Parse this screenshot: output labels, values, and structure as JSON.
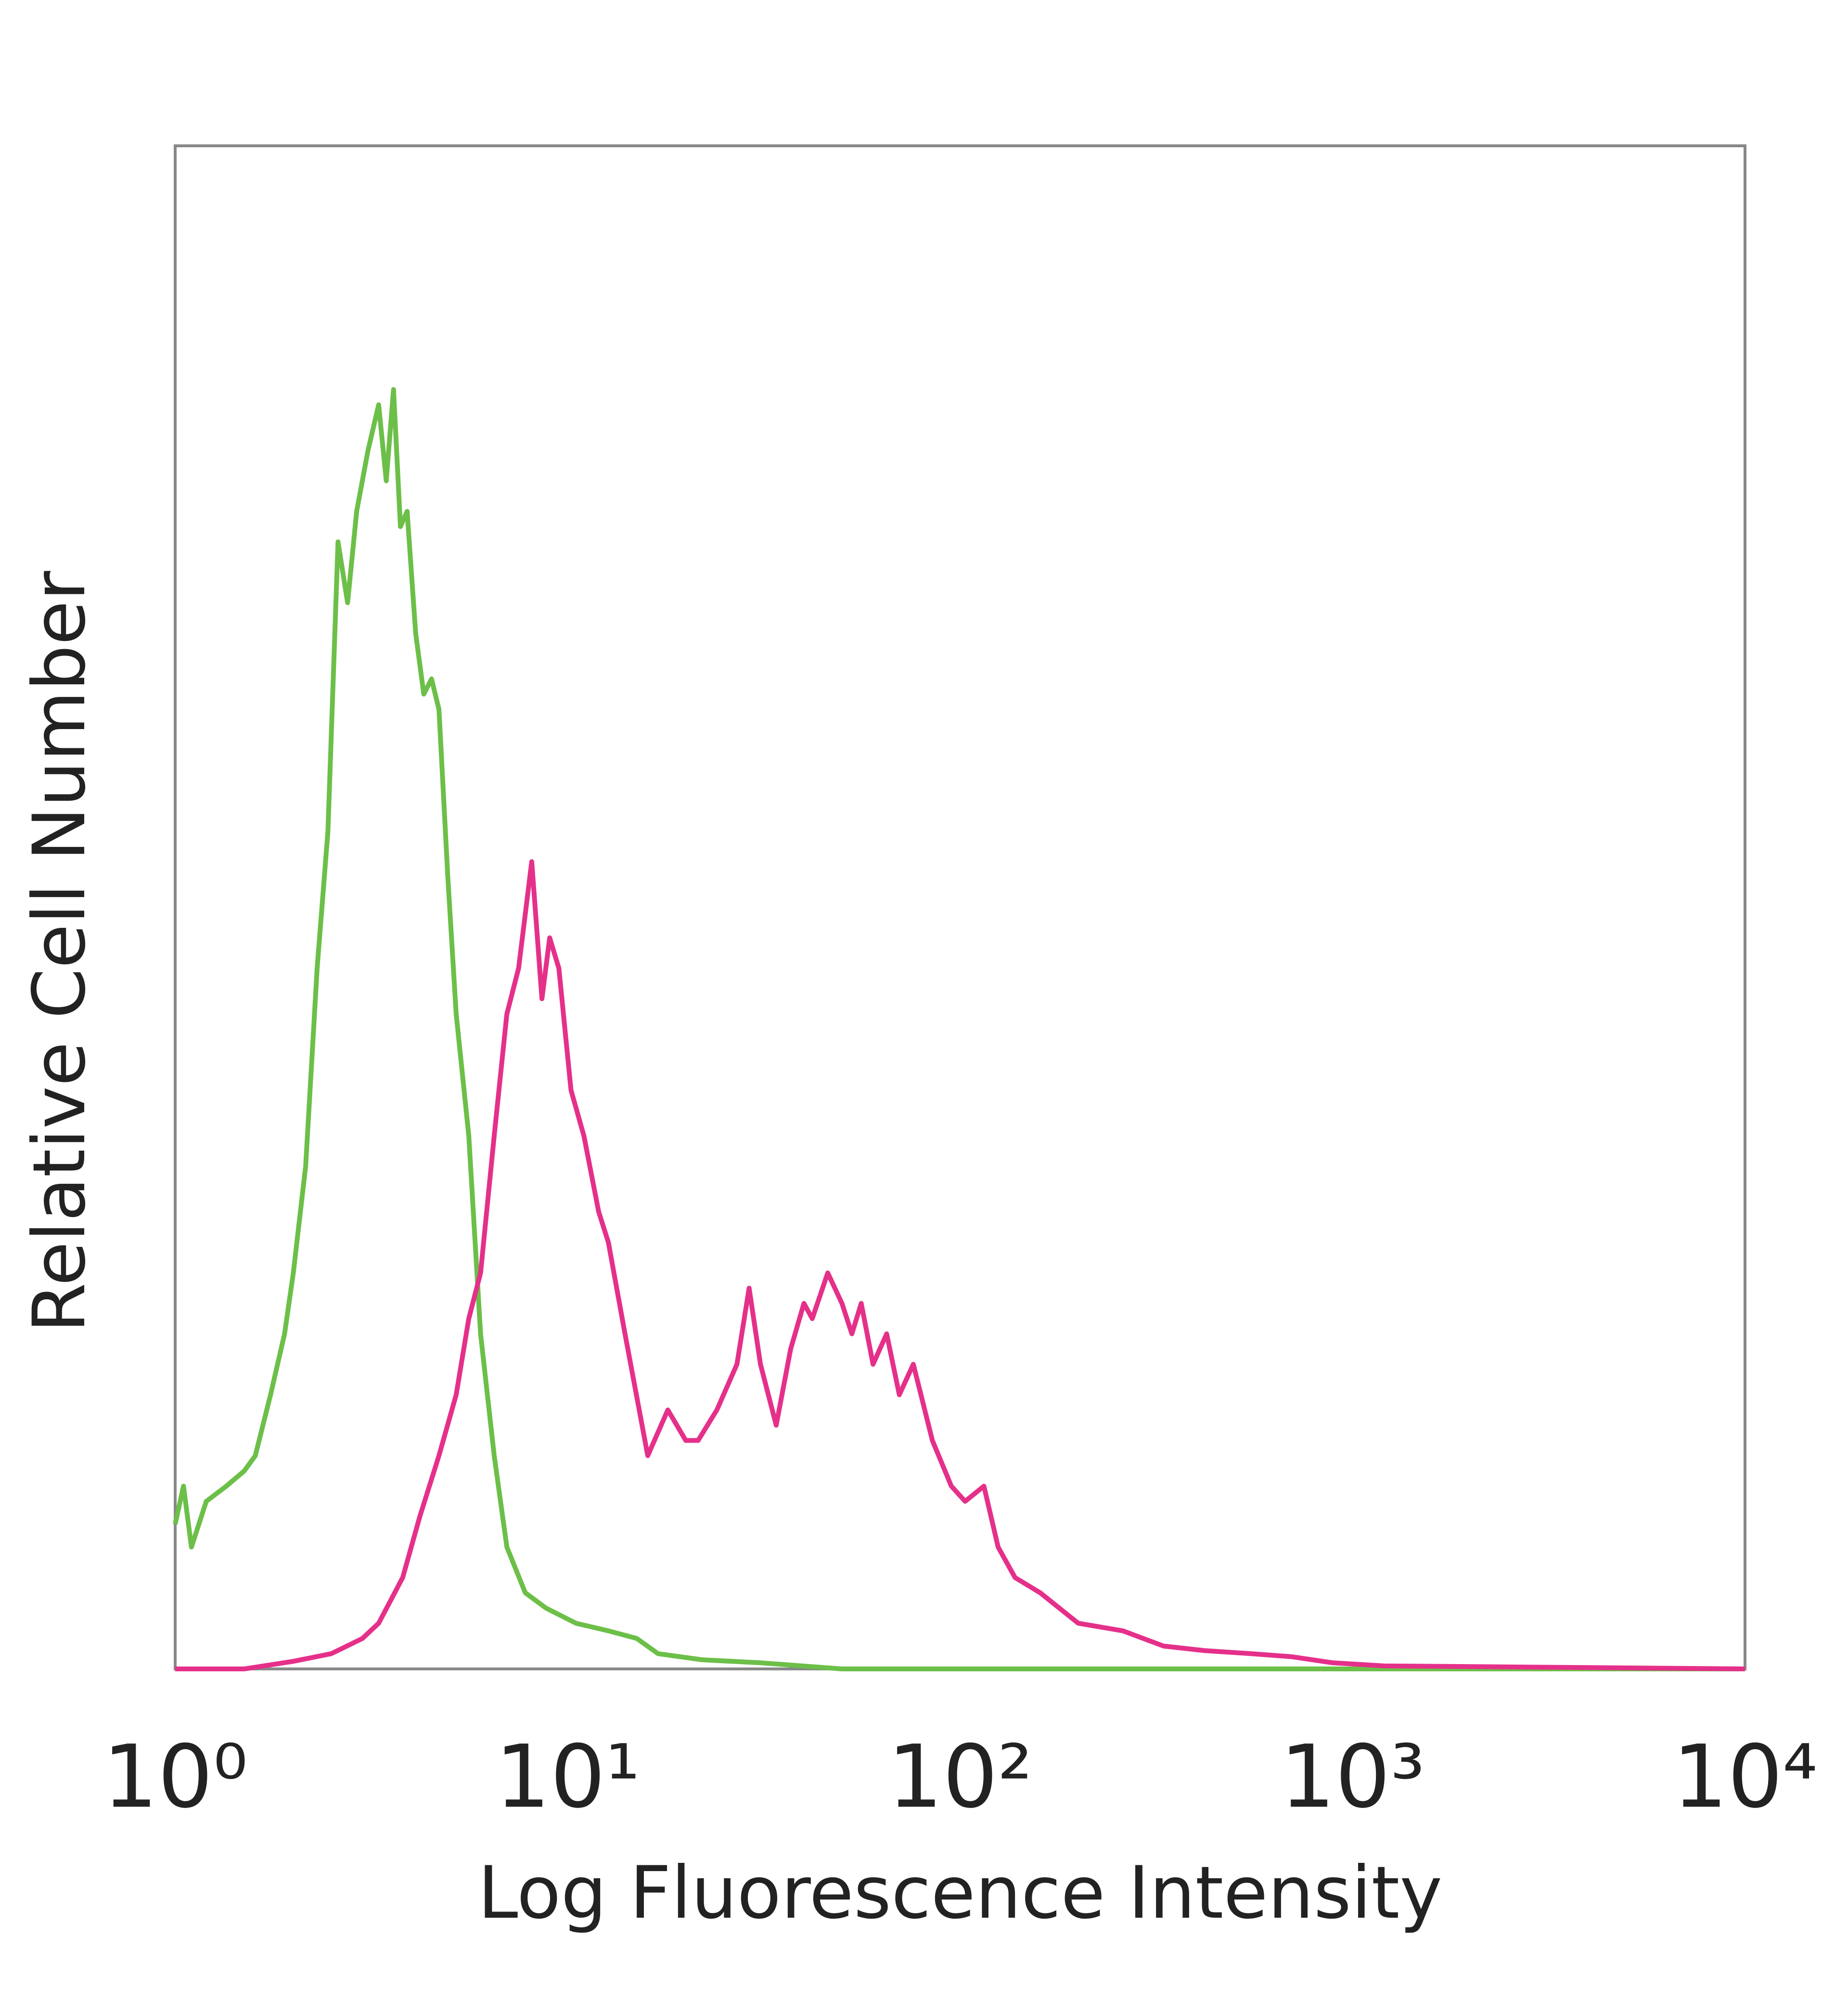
{
  "chart_data": {
    "type": "line",
    "xlabel": "Log Fluorescence Intensity",
    "ylabel": "Relative Cell Number",
    "xscale": "log",
    "xlim": [
      1,
      10000
    ],
    "xticks": [
      {
        "value": 1,
        "label": "10⁰"
      },
      {
        "value": 10,
        "label": "10¹"
      },
      {
        "value": 100,
        "label": "10²"
      },
      {
        "value": 1000,
        "label": "10³"
      },
      {
        "value": 10000,
        "label": "10⁴"
      }
    ],
    "ylim": [
      0,
      100
    ],
    "grid": false,
    "series": [
      {
        "color": "#6cbf48",
        "x": [
          1,
          1.05,
          1.1,
          1.2,
          1.35,
          1.5,
          1.6,
          1.75,
          1.9,
          2.0,
          2.15,
          2.3,
          2.45,
          2.6,
          2.75,
          2.9,
          3.1,
          3.3,
          3.45,
          3.6,
          3.75,
          3.9,
          4.1,
          4.3,
          4.5,
          4.7,
          4.95,
          5.2,
          5.6,
          6.0,
          6.5,
          7.0,
          7.8,
          8.8,
          10.5,
          12.7,
          15,
          17,
          22,
          31,
          50,
          100,
          1000,
          10000
        ],
        "values": [
          9.5,
          12,
          8,
          11,
          12,
          13,
          14,
          18,
          22,
          26,
          33,
          46,
          55,
          74,
          70,
          76,
          80,
          83,
          78,
          84,
          75,
          76,
          68,
          64,
          65,
          63,
          52,
          43,
          35,
          22,
          14,
          8,
          5,
          4,
          3,
          2.5,
          2,
          1,
          0.6,
          0.4,
          0,
          0,
          0,
          0
        ]
      },
      {
        "color": "#e5308a",
        "x": [
          1,
          1.5,
          2.0,
          2.5,
          3.0,
          3.3,
          3.8,
          4.2,
          4.7,
          5.2,
          5.6,
          6.0,
          6.5,
          7.0,
          7.5,
          8.1,
          8.6,
          9.0,
          9.5,
          10.2,
          11,
          12,
          12.7,
          14,
          16,
          18,
          20,
          21.5,
          24,
          27,
          29,
          31,
          34,
          37,
          40,
          42,
          46,
          50,
          53,
          56,
          60,
          65,
          70,
          76,
          85,
          95,
          103,
          115,
          125,
          138,
          160,
          200,
          260,
          330,
          420,
          550,
          700,
          890,
          1200,
          10000
        ],
        "values": [
          0,
          0,
          0.5,
          1,
          2,
          3,
          6,
          10,
          14,
          18,
          23,
          26,
          35,
          43,
          46,
          53,
          44,
          48,
          46,
          38,
          35,
          30,
          28,
          22,
          14,
          17,
          15,
          15,
          17,
          20,
          25,
          20,
          16,
          21,
          24,
          23,
          26,
          24,
          22,
          24,
          20,
          22,
          18,
          20,
          15,
          12,
          11,
          12,
          8,
          6,
          5,
          3,
          2.5,
          1.5,
          1.2,
          1,
          0.8,
          0.4,
          0.2,
          0
        ]
      }
    ]
  }
}
